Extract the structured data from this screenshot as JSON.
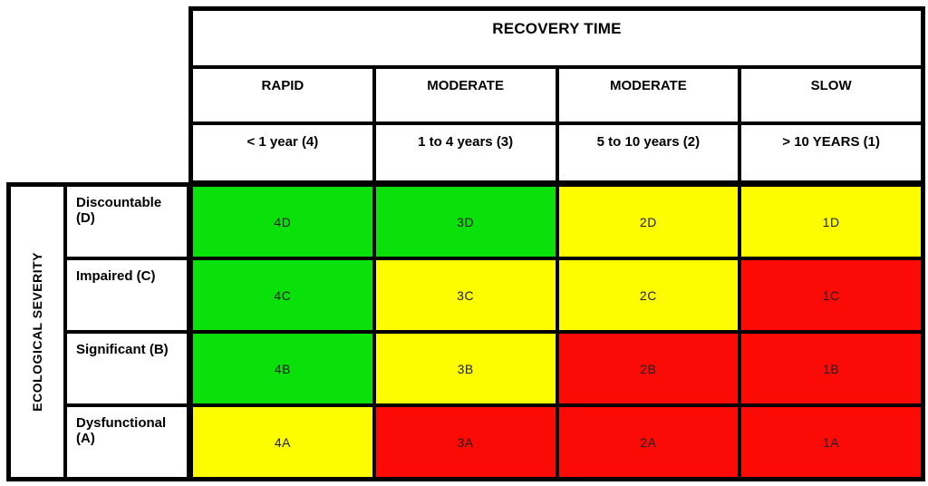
{
  "table": {
    "column_group_title": "RECOVERY TIME",
    "row_group_title": "ECOLOGICAL SEVERITY",
    "colors": {
      "green": "#0ae00a",
      "yellow": "#fdfd00",
      "red": "#fb0a06",
      "border": "#000000",
      "background": "#ffffff"
    },
    "columns": [
      {
        "speed": "RAPID",
        "duration": "< 1 year (4)"
      },
      {
        "speed": "MODERATE",
        "duration": "1 to 4 years (3)"
      },
      {
        "speed": "MODERATE",
        "duration": "5 to 10 years (2)"
      },
      {
        "speed": "SLOW",
        "duration": "> 10 YEARS (1)"
      }
    ],
    "rows": [
      {
        "label": "Discountable (D)",
        "cells": [
          {
            "code": "4D",
            "color": "#0ae00a"
          },
          {
            "code": "3D",
            "color": "#0ae00a"
          },
          {
            "code": "2D",
            "color": "#fdfd00"
          },
          {
            "code": "1D",
            "color": "#fdfd00"
          }
        ]
      },
      {
        "label": "Impaired (C)",
        "cells": [
          {
            "code": "4C",
            "color": "#0ae00a"
          },
          {
            "code": "3C",
            "color": "#fdfd00"
          },
          {
            "code": "2C",
            "color": "#fdfd00"
          },
          {
            "code": "1C",
            "color": "#fb0a06"
          }
        ]
      },
      {
        "label": "Significant (B)",
        "cells": [
          {
            "code": "4B",
            "color": "#0ae00a"
          },
          {
            "code": "3B",
            "color": "#fdfd00"
          },
          {
            "code": "2B",
            "color": "#fb0a06"
          },
          {
            "code": "1B",
            "color": "#fb0a06"
          }
        ]
      },
      {
        "label": "Dysfunctional (A)",
        "cells": [
          {
            "code": "4A",
            "color": "#fdfd00"
          },
          {
            "code": "3A",
            "color": "#fb0a06"
          },
          {
            "code": "2A",
            "color": "#fb0a06"
          },
          {
            "code": "1A",
            "color": "#fb0a06"
          }
        ]
      }
    ]
  },
  "chart_data": {
    "type": "heatmap",
    "title": "RECOVERY TIME",
    "ylabel": "ECOLOGICAL SEVERITY",
    "x_categories": [
      "< 1 year (4)",
      "1 to 4 years (3)",
      "5 to 10 years (2)",
      "> 10 YEARS (1)"
    ],
    "x_speed_labels": [
      "RAPID",
      "MODERATE",
      "MODERATE",
      "SLOW"
    ],
    "y_categories": [
      "Discountable (D)",
      "Impaired (C)",
      "Significant (B)",
      "Dysfunctional (A)"
    ],
    "cell_codes": [
      [
        "4D",
        "3D",
        "2D",
        "1D"
      ],
      [
        "4C",
        "3C",
        "2C",
        "1C"
      ],
      [
        "4B",
        "3B",
        "2B",
        "1B"
      ],
      [
        "4A",
        "3A",
        "2A",
        "1A"
      ]
    ],
    "cell_risk_colors": [
      [
        "green",
        "green",
        "yellow",
        "yellow"
      ],
      [
        "green",
        "yellow",
        "yellow",
        "red"
      ],
      [
        "green",
        "yellow",
        "red",
        "red"
      ],
      [
        "yellow",
        "red",
        "red",
        "red"
      ]
    ]
  }
}
